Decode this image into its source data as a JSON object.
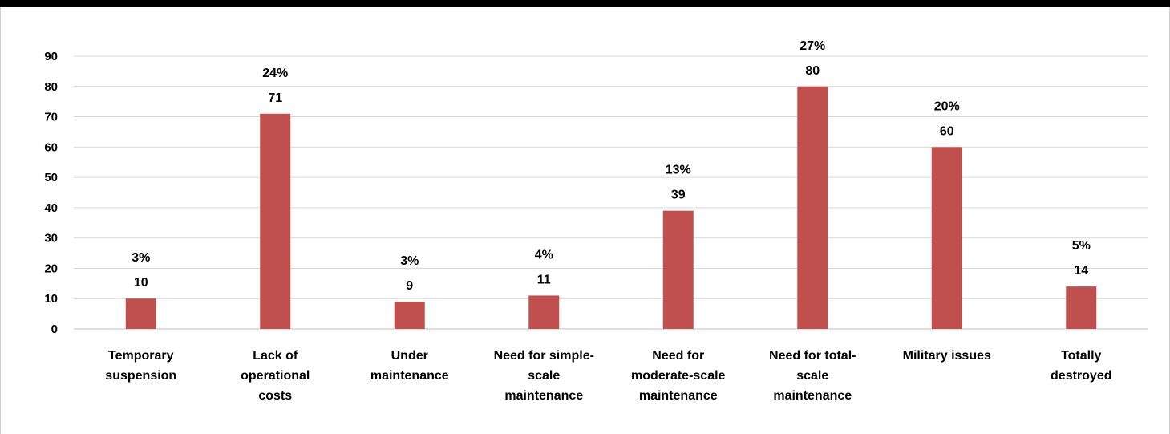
{
  "chart_data": {
    "type": "bar",
    "title": "",
    "xlabel": "",
    "ylabel": "",
    "ylim": [
      0,
      90
    ],
    "yticks": [
      0,
      10,
      20,
      30,
      40,
      50,
      60,
      70,
      80,
      90
    ],
    "grid": true,
    "legend": "none",
    "bar_color": "#c0504d",
    "categories": [
      [
        "Temporary",
        "suspension"
      ],
      [
        "Lack of",
        "operational",
        "costs"
      ],
      [
        "Under",
        "maintenance"
      ],
      [
        "Need for simple-",
        "scale",
        "maintenance"
      ],
      [
        "Need for",
        "moderate-scale",
        "maintenance"
      ],
      [
        "Need for total-",
        "scale",
        "maintenance"
      ],
      [
        "Military issues"
      ],
      [
        "Totally",
        "destroyed"
      ]
    ],
    "values": [
      10,
      71,
      9,
      11,
      39,
      80,
      60,
      14
    ],
    "percent_labels": [
      "3%",
      "24%",
      "3%",
      "4%",
      "13%",
      "27%",
      "20%",
      "5%"
    ]
  }
}
